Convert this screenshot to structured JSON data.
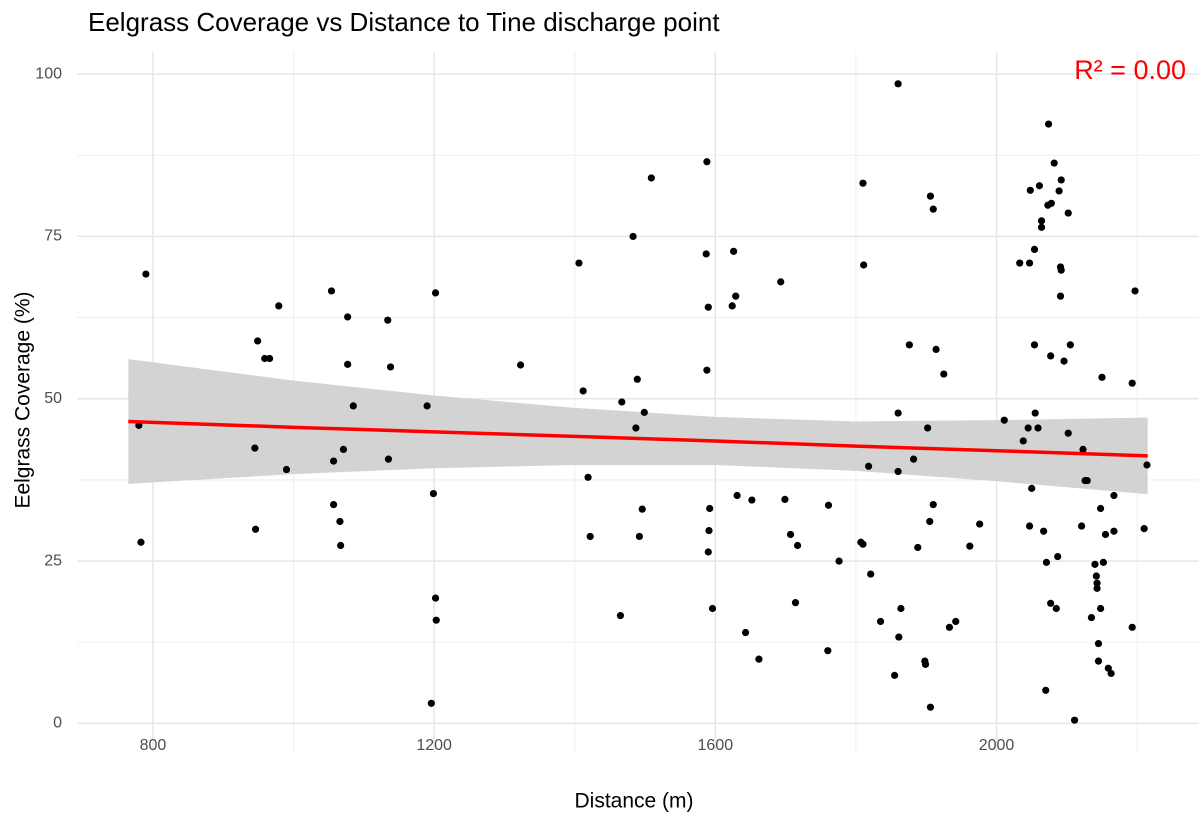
{
  "chart_data": {
    "type": "scatter",
    "title": "Eelgrass Coverage vs Distance to Tine discharge point",
    "xlabel": "Distance (m)",
    "ylabel": "Eelgrass Coverage (%)",
    "annotation": {
      "text": "R² = 0.00",
      "color": "#ff0000"
    },
    "xlim": [
      692,
      2288
    ],
    "ylim": [
      -4.4,
      103.4
    ],
    "xticks": [
      800,
      1200,
      1600,
      2000
    ],
    "yticks": [
      0,
      25,
      50,
      75,
      100
    ],
    "minor_xticks": [
      1000,
      1400,
      1800,
      2200
    ],
    "minor_yticks": [
      12.5,
      37.5,
      62.5,
      87.5
    ],
    "grid": true,
    "series": [
      {
        "color": "#000000",
        "x": [
          780,
          790,
          783,
          949,
          945,
          946,
          959,
          966,
          979,
          990,
          1054,
          1057,
          1057,
          1066,
          1067,
          1071,
          1077,
          1077,
          1085,
          1134,
          1138,
          1135,
          1190,
          1202,
          1199,
          1202,
          1203,
          1196,
          1323,
          1406,
          1412,
          1419,
          1422,
          1465,
          1467,
          1483,
          1489,
          1487,
          1499,
          1496,
          1492,
          1509,
          1588,
          1587,
          1590,
          1588,
          1592,
          1591,
          1590,
          1596,
          1626,
          1624,
          1629,
          1631,
          1643,
          1652,
          1662,
          1693,
          1699,
          1707,
          1717,
          1714,
          1761,
          1760,
          1776,
          1810,
          1811,
          1807,
          1810,
          1818,
          1821,
          1835,
          1855,
          1860,
          1860,
          1860,
          1864,
          1861,
          1876,
          1882,
          1888,
          1898,
          1899,
          1902,
          1905,
          1906,
          1906,
          1910,
          1910,
          1914,
          1925,
          1933,
          1942,
          1962,
          1976,
          2011,
          2033,
          2038,
          2045,
          2047,
          2048,
          2047,
          2050,
          2055,
          2054,
          2054,
          2061,
          2064,
          2064,
          2059,
          2067,
          2070,
          2071,
          2073,
          2074,
          2078,
          2077,
          2077,
          2082,
          2085,
          2087,
          2089,
          2091,
          2092,
          2091,
          2092,
          2096,
          2102,
          2105,
          2102,
          2111,
          2121,
          2123,
          2126,
          2129,
          2135,
          2140,
          2142,
          2143,
          2143,
          2145,
          2145,
          2148,
          2148,
          2150,
          2152,
          2155,
          2159,
          2163,
          2167,
          2167,
          2193,
          2197,
          2193,
          2210,
          2214
        ],
        "values": [
          45.9,
          69.2,
          27.9,
          58.9,
          42.4,
          29.9,
          56.2,
          56.2,
          64.3,
          39.1,
          66.6,
          40.4,
          33.7,
          31.1,
          27.4,
          42.2,
          62.6,
          55.3,
          48.9,
          62.1,
          54.9,
          40.7,
          48.9,
          66.3,
          35.4,
          19.3,
          15.9,
          3.1,
          55.2,
          70.9,
          51.2,
          37.9,
          28.8,
          16.6,
          49.5,
          75.0,
          53.0,
          45.5,
          47.9,
          33.0,
          28.8,
          84.0,
          86.5,
          72.3,
          64.1,
          54.4,
          33.1,
          29.7,
          26.4,
          17.7,
          72.7,
          64.3,
          65.8,
          35.1,
          14.0,
          34.4,
          9.9,
          68.0,
          34.5,
          29.1,
          27.4,
          18.6,
          33.6,
          11.2,
          25.0,
          83.2,
          70.6,
          27.9,
          27.6,
          39.6,
          23.0,
          15.7,
          7.4,
          98.5,
          47.8,
          38.8,
          17.7,
          13.3,
          58.3,
          40.7,
          27.1,
          9.6,
          9.1,
          45.5,
          31.1,
          2.5,
          81.2,
          79.2,
          33.7,
          57.6,
          53.8,
          14.8,
          15.7,
          27.3,
          30.7,
          46.7,
          70.9,
          43.5,
          45.5,
          70.9,
          82.1,
          30.4,
          36.2,
          47.8,
          58.3,
          73.0,
          82.8,
          76.4,
          77.4,
          45.5,
          29.6,
          5.1,
          24.8,
          79.8,
          92.3,
          80.1,
          56.6,
          18.5,
          86.3,
          17.7,
          25.7,
          82.0,
          70.3,
          69.8,
          65.8,
          83.7,
          55.8,
          78.6,
          58.3,
          44.7,
          0.5,
          30.4,
          42.2,
          37.4,
          37.4,
          16.3,
          24.5,
          22.7,
          21.6,
          20.8,
          12.3,
          9.6,
          17.7,
          33.1,
          53.3,
          24.8,
          29.1,
          8.5,
          7.7,
          35.1,
          29.6,
          52.4,
          66.6,
          14.8,
          30.0,
          39.8
        ]
      }
    ],
    "fit": {
      "color": "#ff0000",
      "band_color": "#d3d3d3",
      "x": [
        765,
        1000,
        1200,
        1400,
        1600,
        1800,
        2000,
        2215
      ],
      "values": [
        46.5,
        45.6,
        44.9,
        44.2,
        43.5,
        42.7,
        42.0,
        41.2
      ],
      "lower": [
        36.9,
        38.4,
        39.3,
        39.8,
        39.8,
        38.9,
        37.3,
        35.3
      ],
      "upper": [
        56.1,
        52.8,
        50.5,
        48.6,
        47.2,
        46.5,
        46.7,
        47.1
      ]
    }
  }
}
